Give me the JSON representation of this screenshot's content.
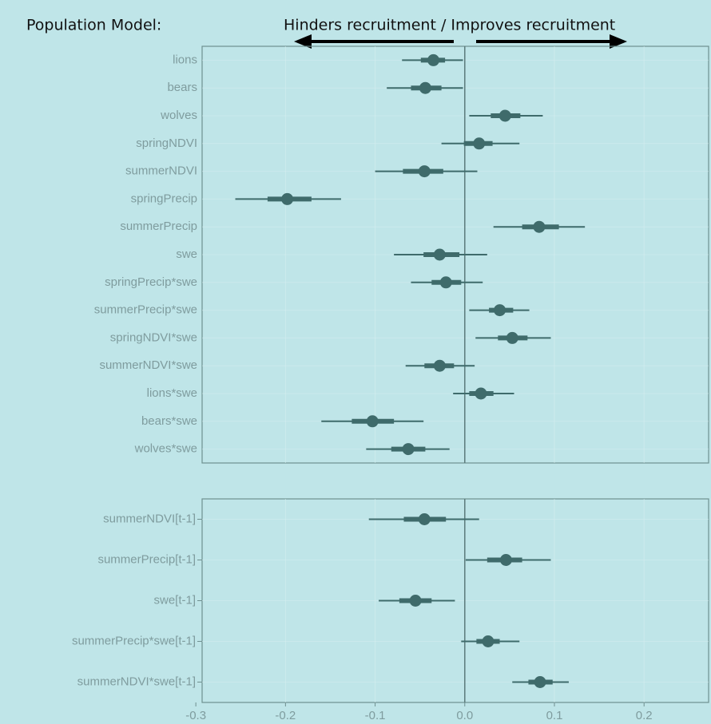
{
  "header": {
    "title": "Population Model:",
    "direction": "Hinders recruitment / Improves recruitment"
  },
  "chart_data": [
    {
      "type": "pointrange",
      "categories": [
        "lions",
        "bears",
        "wolves",
        "springNDVI",
        "summerNDVI",
        "springPrecip",
        "summerPrecip",
        "swe",
        "springPrecip*swe",
        "summerPrecip*swe",
        "springNDVI*swe",
        "summerNDVI*swe",
        "lions*swe",
        "bears*swe",
        "wolves*swe"
      ],
      "values": [
        -0.035,
        -0.044,
        0.045,
        0.016,
        -0.045,
        -0.198,
        0.083,
        -0.028,
        -0.021,
        0.039,
        0.053,
        -0.028,
        0.018,
        -0.103,
        -0.063
      ],
      "inner_low": [
        -0.049,
        -0.06,
        0.029,
        -0.001,
        -0.069,
        -0.22,
        0.064,
        -0.046,
        -0.037,
        0.027,
        0.037,
        -0.045,
        0.005,
        -0.126,
        -0.082
      ],
      "inner_high": [
        -0.022,
        -0.026,
        0.062,
        0.031,
        -0.024,
        -0.171,
        0.105,
        -0.006,
        -0.004,
        0.054,
        0.07,
        -0.012,
        0.032,
        -0.079,
        -0.044
      ],
      "outer_low": [
        -0.07,
        -0.087,
        0.005,
        -0.026,
        -0.1,
        -0.256,
        0.032,
        -0.079,
        -0.06,
        0.005,
        0.012,
        -0.066,
        -0.013,
        -0.16,
        -0.11
      ],
      "outer_high": [
        -0.002,
        -0.002,
        0.087,
        0.061,
        0.014,
        -0.138,
        0.134,
        0.025,
        0.02,
        0.072,
        0.096,
        0.011,
        0.055,
        -0.046,
        -0.017
      ],
      "color": "#3f6b6b",
      "reference": 0,
      "xlim": [
        -0.293,
        0.272
      ],
      "xticks": [
        -0.3,
        -0.2,
        -0.1,
        0,
        0.1,
        0.2
      ],
      "grid": true
    },
    {
      "type": "pointrange",
      "categories": [
        "summerNDVI[t-1]",
        "summerPrecip[t-1]",
        "swe[t-1]",
        "summerPrecip*swe[t-1]",
        "summerNDVI*swe[t-1]"
      ],
      "values": [
        -0.045,
        0.046,
        -0.055,
        0.026,
        0.084
      ],
      "inner_low": [
        -0.068,
        0.025,
        -0.073,
        0.013,
        0.071
      ],
      "inner_high": [
        -0.021,
        0.064,
        -0.037,
        0.039,
        0.098
      ],
      "outer_low": [
        -0.107,
        0.001,
        -0.096,
        -0.004,
        0.053
      ],
      "outer_high": [
        0.016,
        0.096,
        -0.011,
        0.061,
        0.116
      ],
      "color": "#3f6b6b",
      "reference": 0,
      "xlim": [
        -0.293,
        0.272
      ],
      "xticks": [
        -0.3,
        -0.2,
        -0.1,
        {
          "value": 0,
          "label": "0.0"
        },
        0.1,
        0.2
      ],
      "grid": true
    }
  ]
}
